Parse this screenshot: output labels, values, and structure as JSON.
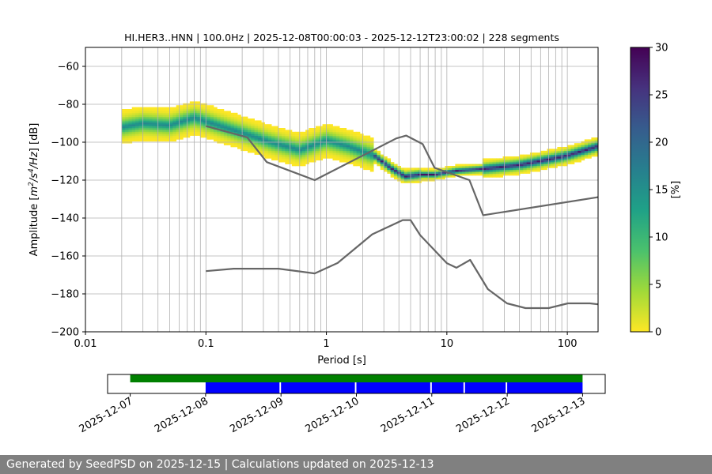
{
  "chart_data": {
    "type": "heatmap",
    "title": "HI.HER3..HNN | 100.0Hz | 2025-12-08T00:00:03 - 2025-12-12T23:00:02 | 228 segments",
    "xlabel": "Period [s]",
    "ylabel_html": "Amplitude [m²/s⁴/Hz] [dB]",
    "xscale": "log",
    "xlim": [
      0.01,
      180
    ],
    "ylim": [
      -200,
      -50
    ],
    "x_ticks": [
      {
        "v": 0.01,
        "label": "0.01"
      },
      {
        "v": 0.1,
        "label": "0.1"
      },
      {
        "v": 1,
        "label": "1"
      },
      {
        "v": 10,
        "label": "10"
      },
      {
        "v": 100,
        "label": "100"
      }
    ],
    "y_ticks": [
      {
        "v": -60,
        "label": "−60"
      },
      {
        "v": -80,
        "label": "−80"
      },
      {
        "v": -100,
        "label": "−100"
      },
      {
        "v": -120,
        "label": "−120"
      },
      {
        "v": -140,
        "label": "−140"
      },
      {
        "v": -160,
        "label": "−160"
      },
      {
        "v": -180,
        "label": "−180"
      },
      {
        "v": -200,
        "label": "−200"
      }
    ],
    "ppsd_mode": {
      "period": [
        0.02,
        0.03,
        0.05,
        0.08,
        0.1,
        0.2,
        0.35,
        0.6,
        1.0,
        1.5,
        2.5,
        3.5,
        4.5,
        6,
        8,
        12,
        20,
        40,
        70,
        100,
        180
      ],
      "db": [
        -92,
        -90,
        -91,
        -87,
        -89,
        -95,
        -100,
        -104,
        -99,
        -102,
        -107,
        -114,
        -118,
        -117,
        -117,
        -115,
        -114,
        -112,
        -109,
        -107,
        -102
      ]
    },
    "nhnm": {
      "period": [
        0.1,
        0.22,
        0.32,
        0.8,
        3.8,
        4.6,
        6.3,
        7.9,
        15.4,
        20,
        180
      ],
      "db": [
        -91.5,
        -97.4,
        -110.5,
        -120,
        -98,
        -96.5,
        -101,
        -113.5,
        -120,
        -138.5,
        -129
      ]
    },
    "nlnm": {
      "period": [
        0.1,
        0.17,
        0.4,
        0.8,
        1.24,
        2.4,
        4.3,
        5.0,
        6.0,
        10,
        12,
        15.6,
        21.9,
        31.6,
        45,
        70,
        101,
        154,
        180
      ],
      "db": [
        -168,
        -166.7,
        -166.7,
        -169.2,
        -163.7,
        -148.6,
        -141.1,
        -141.1,
        -149.0,
        -163.8,
        -166.2,
        -162.1,
        -177.5,
        -185.0,
        -187.5,
        -187.5,
        -185.0,
        -185.0,
        -185.5
      ]
    },
    "colorbar": {
      "label": "[%]",
      "min": 0,
      "max": 30,
      "ticks": [
        {
          "v": 0,
          "label": "0"
        },
        {
          "v": 5,
          "label": "5"
        },
        {
          "v": 10,
          "label": "10"
        },
        {
          "v": 15,
          "label": "15"
        },
        {
          "v": 20,
          "label": "20"
        },
        {
          "v": 25,
          "label": "25"
        },
        {
          "v": 30,
          "label": "30"
        }
      ],
      "colors": [
        "#fde725",
        "#a0da39",
        "#4ac16d",
        "#1fa187",
        "#277f8e",
        "#365c8d",
        "#46327e",
        "#440154"
      ]
    },
    "data_availability": {
      "xlim_days": [
        -0.3,
        6.3
      ],
      "date_ticks": [
        {
          "v": 0,
          "label": "2025-12-07"
        },
        {
          "v": 1,
          "label": "2025-12-08"
        },
        {
          "v": 2,
          "label": "2025-12-09"
        },
        {
          "v": 3,
          "label": "2025-12-10"
        },
        {
          "v": 4,
          "label": "2025-12-11"
        },
        {
          "v": 5,
          "label": "2025-12-12"
        },
        {
          "v": 6,
          "label": "2025-12-13"
        }
      ],
      "data_span_days": [
        0,
        6
      ],
      "processed_blocks_days": [
        [
          1,
          1.98
        ],
        [
          2.0,
          2.98
        ],
        [
          3.0,
          3.98
        ],
        [
          4.0,
          4.42
        ],
        [
          4.44,
          4.98
        ],
        [
          5.0,
          6.0
        ]
      ],
      "data_color": "#008000",
      "processed_color": "#0000ff"
    }
  },
  "footer": {
    "text": "Generated by SeedPSD on 2025-12-15 | Calculations updated on 2025-12-13"
  }
}
